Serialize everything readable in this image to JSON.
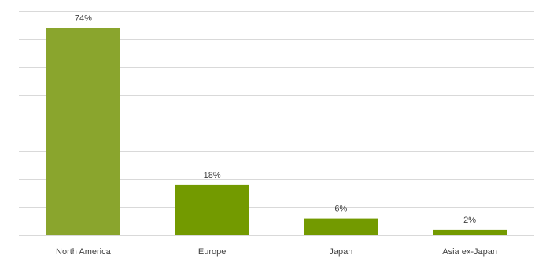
{
  "chart_data": {
    "type": "bar",
    "title": "",
    "xlabel": "",
    "ylabel": "",
    "categories": [
      "North America",
      "Europe",
      "Japan",
      "Asia ex-Japan"
    ],
    "values": [
      74,
      18,
      6,
      2
    ],
    "data_labels": [
      "74%",
      "18%",
      "6%",
      "2%"
    ],
    "ylim": [
      0,
      80
    ],
    "grid": true,
    "legend": "none",
    "colors": [
      "#8aa52d",
      "#739a00",
      "#739a00",
      "#739a00"
    ],
    "gridline_color": "#d9d9d9"
  }
}
